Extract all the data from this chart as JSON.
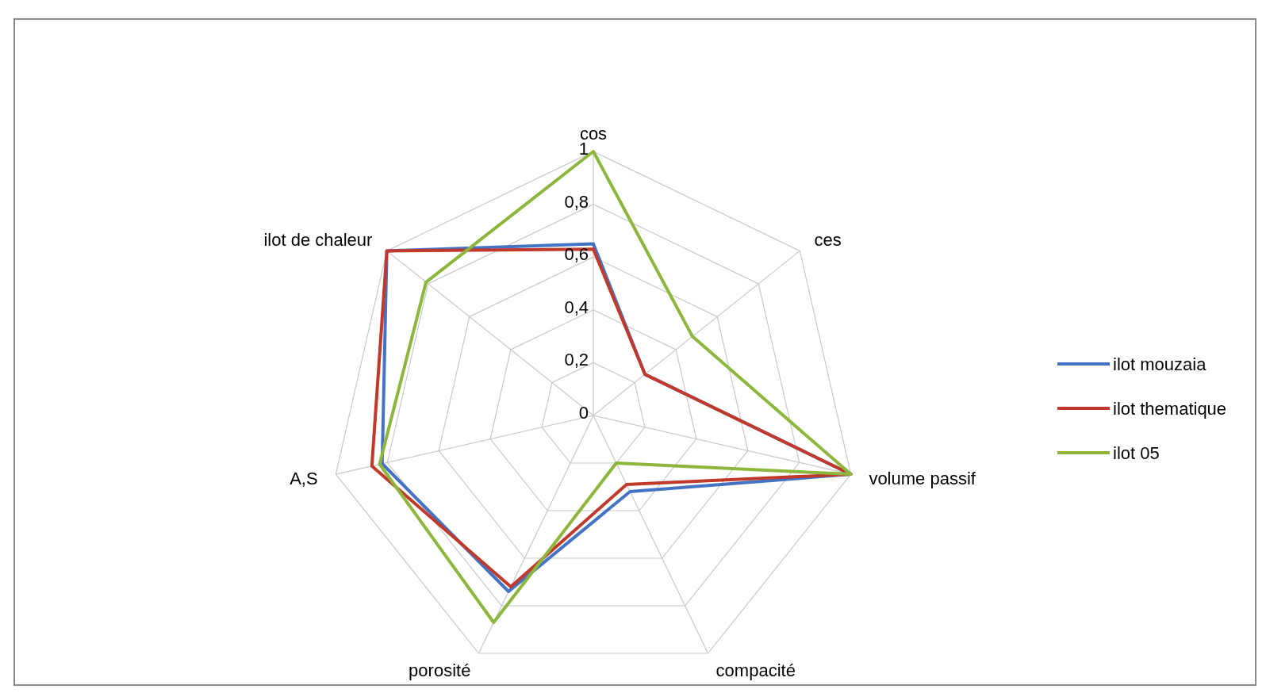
{
  "chart_data": {
    "type": "radar",
    "categories": [
      "cos",
      "ces",
      "volume passif",
      "compacité",
      "porosité",
      "A,S",
      "ilot de chaleur"
    ],
    "series": [
      {
        "name": "ilot mouzaia",
        "color": "#4472c4",
        "values": [
          0.65,
          0.25,
          1,
          0.32,
          0.74,
          0.82,
          1
        ]
      },
      {
        "name": "ilot thematique",
        "color": "#c0392b",
        "values": [
          0.63,
          0.25,
          1,
          0.29,
          0.72,
          0.86,
          1
        ]
      },
      {
        "name": "ilot 05",
        "color": "#8cb63c",
        "values": [
          1,
          0.48,
          1,
          0.2,
          0.87,
          0.83,
          0.81
        ]
      }
    ],
    "ylim": [
      0,
      1
    ],
    "yticks": [
      0,
      {
        "value": 0.2,
        "label": "0,2"
      },
      {
        "value": 0.4,
        "label": "0,4"
      },
      {
        "value": 0.6,
        "label": "0,6"
      },
      {
        "value": 0.8,
        "label": "0,8"
      },
      1
    ],
    "grid": true,
    "legend": "right"
  }
}
